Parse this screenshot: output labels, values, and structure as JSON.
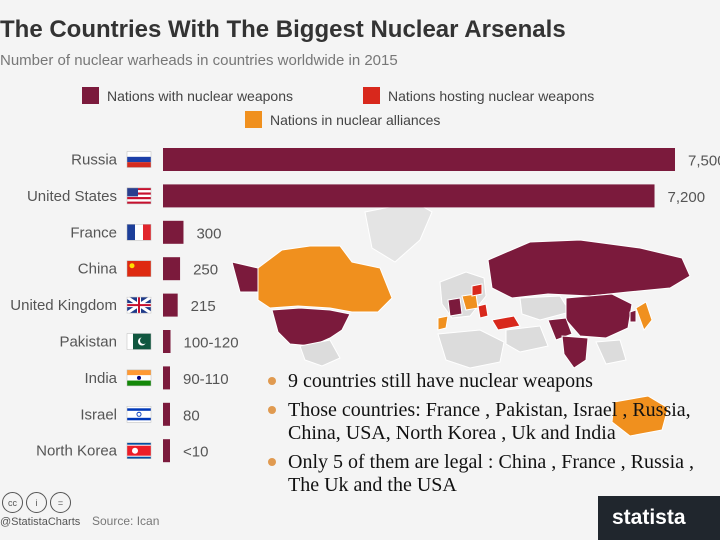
{
  "title": "The Countries With The Biggest Nuclear Arsenals",
  "subtitle": "Number of nuclear warheads in countries worldwide in 2015",
  "legend": [
    {
      "label": "Nations with nuclear weapons",
      "color": "#7b1a3c"
    },
    {
      "label": "Nations hosting nuclear weapons",
      "color": "#d8281c"
    },
    {
      "label": "Nations in nuclear alliances",
      "color": "#f0901e"
    }
  ],
  "chart_data": {
    "type": "bar",
    "orientation": "horizontal",
    "title": "The Countries With The Biggest Nuclear Arsenals",
    "subtitle": "Number of nuclear warheads in countries worldwide in 2015",
    "categories": [
      "Russia",
      "United States",
      "France",
      "China",
      "United Kingdom",
      "Pakistan",
      "India",
      "Israel",
      "North Korea"
    ],
    "values": [
      7500,
      7200,
      300,
      250,
      215,
      110,
      100,
      80,
      10
    ],
    "labels": [
      "7,500",
      "7,200",
      "300",
      "250",
      "215",
      "100-120",
      "90-110",
      "80",
      "<10"
    ],
    "series_color": "#7b1a3c",
    "xlim": [
      0,
      7500
    ],
    "grid": false
  },
  "bullets": [
    "9 countries still have  nuclear weapons",
    "Those countries: France , Pakistan, Israel , Russia, China, USA, North Korea , Uk and India",
    "Only 5 of them are legal : China , France , Russia , The Uk and the USA"
  ],
  "footer": {
    "cc_icons": [
      "cc",
      "i",
      "="
    ],
    "handle": "@StatistaCharts",
    "source": "Source: Ican",
    "brand": "statista"
  }
}
